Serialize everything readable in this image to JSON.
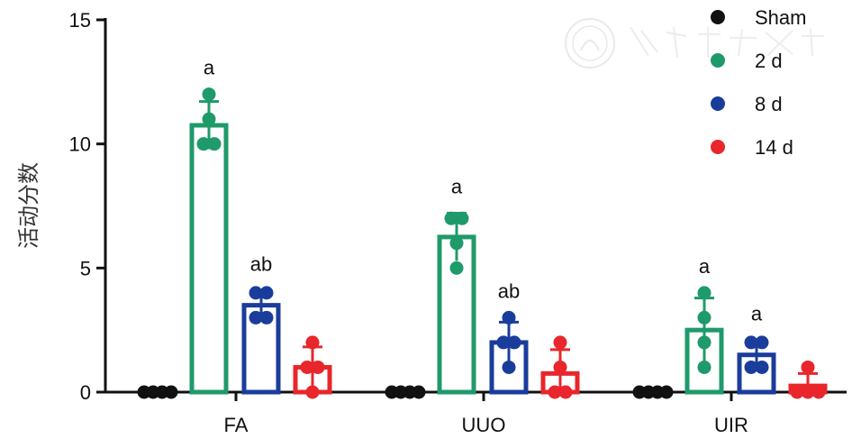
{
  "chart_data": {
    "type": "bar",
    "title": "",
    "xlabel": "",
    "ylabel": "活动分数",
    "ylim": [
      0,
      15
    ],
    "yticks": [
      0,
      5,
      10,
      15
    ],
    "grid": false,
    "legend_position": "top-right",
    "categories": [
      "FA",
      "UUO",
      "UIR"
    ],
    "series": [
      {
        "name": "Sham",
        "color": "#111111",
        "values": [
          0,
          0,
          0
        ],
        "sd": [
          0,
          0,
          0
        ],
        "points": [
          [
            0,
            0,
            0,
            0
          ],
          [
            0,
            0,
            0,
            0
          ],
          [
            0,
            0,
            0,
            0
          ]
        ],
        "labels": [
          "",
          "",
          ""
        ]
      },
      {
        "name": "2 d",
        "color": "#1f9a6a",
        "values": [
          10.75,
          6.25,
          2.5
        ],
        "sd": [
          0.96,
          0.96,
          1.29
        ],
        "points": [
          [
            12,
            11,
            10,
            10
          ],
          [
            7,
            7,
            6,
            5
          ],
          [
            4,
            3,
            2,
            1
          ]
        ],
        "labels": [
          "a",
          "a",
          "a"
        ]
      },
      {
        "name": "8 d",
        "color": "#1a3d9c",
        "values": [
          3.5,
          2.0,
          1.5
        ],
        "sd": [
          0.58,
          0.82,
          0.58
        ],
        "points": [
          [
            4,
            4,
            3,
            3
          ],
          [
            3,
            2,
            2,
            1
          ],
          [
            2,
            2,
            1,
            1
          ]
        ],
        "labels": [
          "ab",
          "ab",
          "a"
        ]
      },
      {
        "name": "14 d",
        "color": "#e8262b",
        "values": [
          1.0,
          0.75,
          0.25
        ],
        "sd": [
          0.82,
          0.96,
          0.5
        ],
        "points": [
          [
            2,
            1,
            1,
            0
          ],
          [
            2,
            1,
            0,
            0
          ],
          [
            1,
            0,
            0,
            0
          ]
        ],
        "labels": [
          "",
          "",
          ""
        ]
      }
    ]
  }
}
